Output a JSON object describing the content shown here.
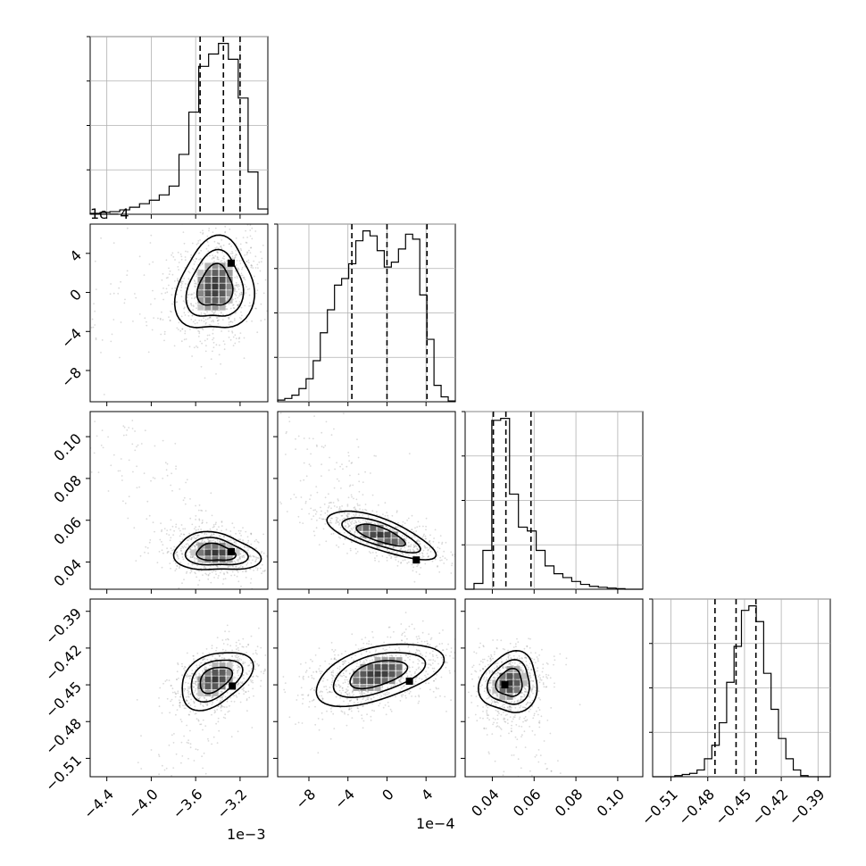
{
  "chart_data": {
    "type": "corner",
    "parameters": [
      {
        "range": [
          -0.00455,
          -0.00295
        ],
        "ticks": [
          "−4.4",
          "−4.0",
          "−3.6",
          "−3.2"
        ],
        "tick_values": [
          -0.0044,
          -0.004,
          -0.0036,
          -0.0032
        ],
        "offset_label": "1e−3",
        "quantiles": [
          -0.00356,
          -0.00335,
          -0.0032
        ],
        "hist": [
          0.5,
          1,
          1.5,
          2.5,
          4,
          6,
          8,
          11,
          16,
          34,
          58,
          84,
          91,
          97,
          88,
          66,
          24,
          3
        ]
      },
      {
        "range": [
          -0.00112,
          0.0007
        ],
        "ticks": [
          "−8",
          "−4",
          "0",
          "4"
        ],
        "tick_values": [
          -0.0008,
          -0.0004,
          0,
          0.0004
        ],
        "offset_label": "1e−4",
        "quantiles": [
          -0.00036,
          0,
          0.00041
        ],
        "hist": [
          1,
          2,
          4,
          8,
          14,
          25,
          42,
          56,
          71,
          75,
          84,
          98,
          104,
          101,
          92,
          82,
          85,
          93,
          102,
          99,
          65,
          38,
          10,
          3,
          0.5
        ]
      },
      {
        "range": [
          0.027,
          0.112
        ],
        "ticks": [
          "0.04",
          "0.06",
          "0.08",
          "0.10"
        ],
        "tick_values": [
          0.04,
          0.06,
          0.08,
          0.1
        ],
        "offset_label": "",
        "quantiles": [
          0.0405,
          0.0465,
          0.0585
        ],
        "hist": [
          0,
          3,
          20,
          87,
          88,
          49,
          32,
          30,
          20,
          12,
          8,
          6,
          4,
          2.5,
          1.5,
          1,
          0.6,
          0.3,
          0,
          0
        ]
      },
      {
        "range": [
          -0.525,
          -0.38
        ],
        "ticks": [
          "−0.51",
          "−0.48",
          "−0.45",
          "−0.42",
          "−0.39"
        ],
        "tick_values": [
          -0.51,
          -0.48,
          -0.45,
          -0.42,
          -0.39
        ],
        "offset_label": "",
        "quantiles": [
          -0.4741,
          -0.4569,
          -0.4407
        ],
        "hist": [
          0,
          0,
          0,
          0.5,
          1,
          1.5,
          3,
          8,
          14,
          24,
          42,
          58,
          74,
          76,
          69,
          46,
          30,
          17,
          8,
          3,
          0.5,
          0,
          0,
          0
        ]
      }
    ],
    "density_peaks": [
      {
        "row": 1,
        "col": 0,
        "x": -0.00328,
        "y": 0.0003
      },
      {
        "row": 2,
        "col": 0,
        "x": -0.00328,
        "y": 0.045
      },
      {
        "row": 2,
        "col": 1,
        "x": 0.0003,
        "y": 0.041
      },
      {
        "row": 3,
        "col": 0,
        "x": -0.00327,
        "y": -0.451
      },
      {
        "row": 3,
        "col": 1,
        "x": 0.00023,
        "y": -0.447
      },
      {
        "row": 3,
        "col": 2,
        "x": 0.046,
        "y": -0.45
      }
    ]
  }
}
